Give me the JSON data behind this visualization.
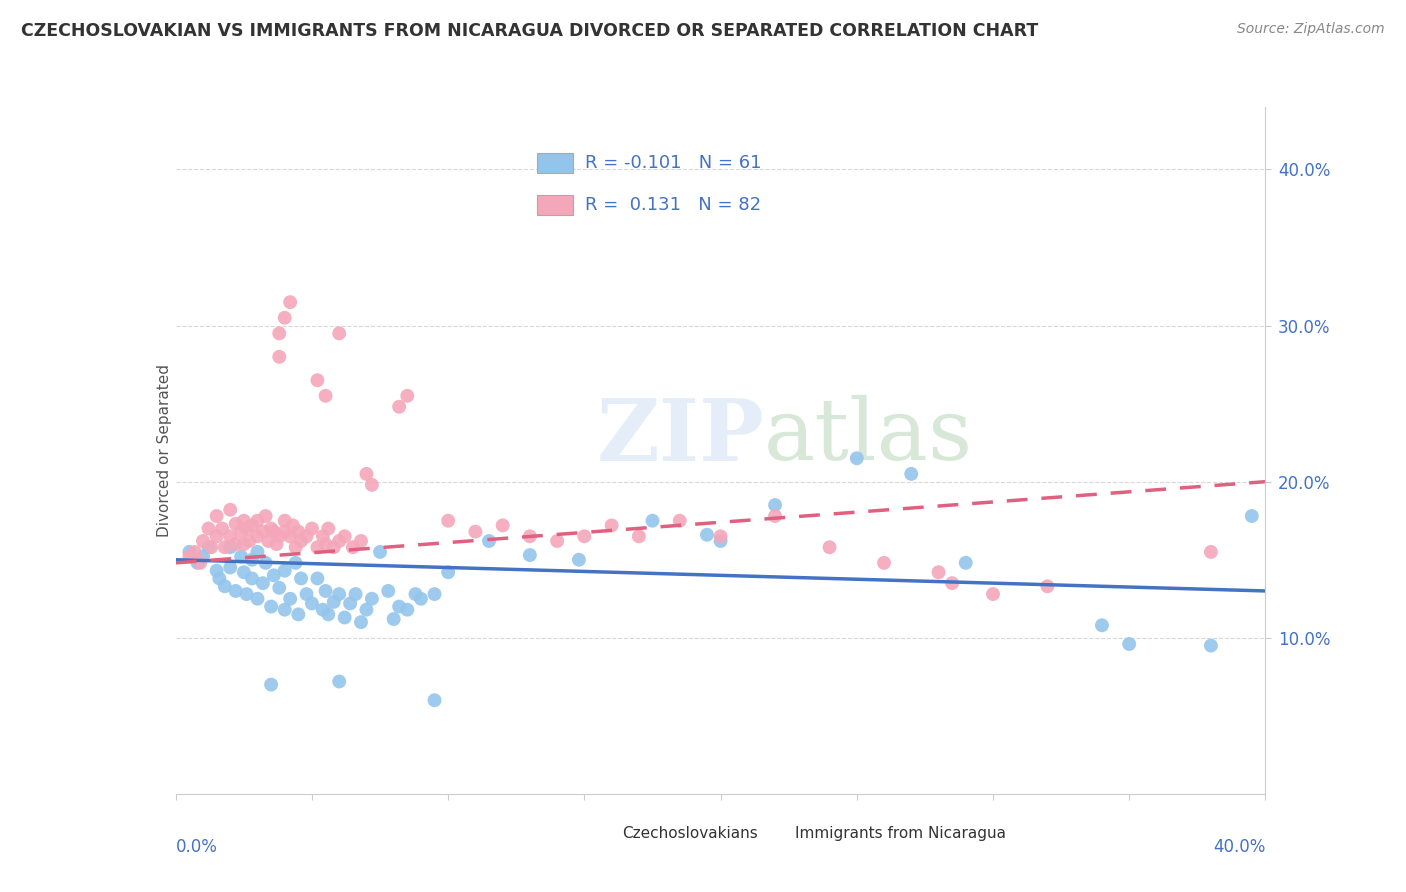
{
  "title": "CZECHOSLOVAKIAN VS IMMIGRANTS FROM NICARAGUA DIVORCED OR SEPARATED CORRELATION CHART",
  "source": "Source: ZipAtlas.com",
  "watermark": "ZIPatlas",
  "ylabel": "Divorced or Separated",
  "ytick_values": [
    0.1,
    0.2,
    0.3,
    0.4
  ],
  "xlim": [
    0.0,
    0.4
  ],
  "ylim": [
    0.0,
    0.44
  ],
  "blue_color": "#93C5EC",
  "pink_color": "#F4A7B9",
  "blue_line_color": "#4472C4",
  "pink_line_color": "#E06080",
  "tick_color": "#4472C4",
  "grid_color": "#D8D8D8",
  "bg_color": "#FFFFFF",
  "blue_scatter": [
    [
      0.005,
      0.155
    ],
    [
      0.008,
      0.148
    ],
    [
      0.01,
      0.152
    ],
    [
      0.012,
      0.158
    ],
    [
      0.015,
      0.143
    ],
    [
      0.016,
      0.138
    ],
    [
      0.018,
      0.133
    ],
    [
      0.02,
      0.145
    ],
    [
      0.02,
      0.158
    ],
    [
      0.022,
      0.13
    ],
    [
      0.024,
      0.152
    ],
    [
      0.025,
      0.142
    ],
    [
      0.026,
      0.128
    ],
    [
      0.028,
      0.138
    ],
    [
      0.028,
      0.15
    ],
    [
      0.03,
      0.125
    ],
    [
      0.03,
      0.155
    ],
    [
      0.032,
      0.135
    ],
    [
      0.033,
      0.148
    ],
    [
      0.035,
      0.12
    ],
    [
      0.036,
      0.14
    ],
    [
      0.038,
      0.132
    ],
    [
      0.04,
      0.118
    ],
    [
      0.04,
      0.143
    ],
    [
      0.042,
      0.125
    ],
    [
      0.044,
      0.148
    ],
    [
      0.045,
      0.115
    ],
    [
      0.046,
      0.138
    ],
    [
      0.048,
      0.128
    ],
    [
      0.05,
      0.122
    ],
    [
      0.052,
      0.138
    ],
    [
      0.054,
      0.118
    ],
    [
      0.055,
      0.13
    ],
    [
      0.056,
      0.115
    ],
    [
      0.058,
      0.123
    ],
    [
      0.06,
      0.128
    ],
    [
      0.062,
      0.113
    ],
    [
      0.064,
      0.122
    ],
    [
      0.066,
      0.128
    ],
    [
      0.068,
      0.11
    ],
    [
      0.07,
      0.118
    ],
    [
      0.072,
      0.125
    ],
    [
      0.075,
      0.155
    ],
    [
      0.078,
      0.13
    ],
    [
      0.08,
      0.112
    ],
    [
      0.082,
      0.12
    ],
    [
      0.085,
      0.118
    ],
    [
      0.088,
      0.128
    ],
    [
      0.09,
      0.125
    ],
    [
      0.095,
      0.128
    ],
    [
      0.1,
      0.142
    ],
    [
      0.115,
      0.162
    ],
    [
      0.13,
      0.153
    ],
    [
      0.148,
      0.15
    ],
    [
      0.175,
      0.175
    ],
    [
      0.2,
      0.162
    ],
    [
      0.25,
      0.215
    ],
    [
      0.27,
      0.205
    ],
    [
      0.035,
      0.07
    ],
    [
      0.06,
      0.072
    ],
    [
      0.095,
      0.06
    ],
    [
      0.35,
      0.096
    ],
    [
      0.38,
      0.095
    ],
    [
      0.395,
      0.178
    ],
    [
      0.195,
      0.166
    ],
    [
      0.22,
      0.185
    ],
    [
      0.29,
      0.148
    ],
    [
      0.34,
      0.108
    ]
  ],
  "pink_scatter": [
    [
      0.005,
      0.152
    ],
    [
      0.007,
      0.155
    ],
    [
      0.009,
      0.148
    ],
    [
      0.01,
      0.162
    ],
    [
      0.012,
      0.17
    ],
    [
      0.013,
      0.158
    ],
    [
      0.015,
      0.165
    ],
    [
      0.015,
      0.178
    ],
    [
      0.017,
      0.17
    ],
    [
      0.018,
      0.158
    ],
    [
      0.02,
      0.182
    ],
    [
      0.02,
      0.165
    ],
    [
      0.022,
      0.16
    ],
    [
      0.022,
      0.173
    ],
    [
      0.024,
      0.168
    ],
    [
      0.025,
      0.175
    ],
    [
      0.025,
      0.16
    ],
    [
      0.026,
      0.17
    ],
    [
      0.027,
      0.162
    ],
    [
      0.028,
      0.172
    ],
    [
      0.03,
      0.165
    ],
    [
      0.03,
      0.175
    ],
    [
      0.032,
      0.168
    ],
    [
      0.033,
      0.178
    ],
    [
      0.034,
      0.162
    ],
    [
      0.035,
      0.17
    ],
    [
      0.036,
      0.168
    ],
    [
      0.037,
      0.16
    ],
    [
      0.038,
      0.165
    ],
    [
      0.04,
      0.168
    ],
    [
      0.04,
      0.175
    ],
    [
      0.042,
      0.165
    ],
    [
      0.043,
      0.172
    ],
    [
      0.044,
      0.158
    ],
    [
      0.045,
      0.168
    ],
    [
      0.046,
      0.162
    ],
    [
      0.048,
      0.165
    ],
    [
      0.05,
      0.17
    ],
    [
      0.052,
      0.158
    ],
    [
      0.054,
      0.165
    ],
    [
      0.055,
      0.16
    ],
    [
      0.056,
      0.17
    ],
    [
      0.058,
      0.158
    ],
    [
      0.06,
      0.162
    ],
    [
      0.062,
      0.165
    ],
    [
      0.065,
      0.158
    ],
    [
      0.068,
      0.162
    ],
    [
      0.038,
      0.295
    ],
    [
      0.04,
      0.305
    ],
    [
      0.042,
      0.315
    ],
    [
      0.038,
      0.28
    ],
    [
      0.052,
      0.265
    ],
    [
      0.055,
      0.255
    ],
    [
      0.06,
      0.295
    ],
    [
      0.082,
      0.248
    ],
    [
      0.085,
      0.255
    ],
    [
      0.07,
      0.205
    ],
    [
      0.072,
      0.198
    ],
    [
      0.1,
      0.175
    ],
    [
      0.11,
      0.168
    ],
    [
      0.12,
      0.172
    ],
    [
      0.13,
      0.165
    ],
    [
      0.14,
      0.162
    ],
    [
      0.15,
      0.165
    ],
    [
      0.16,
      0.172
    ],
    [
      0.17,
      0.165
    ],
    [
      0.185,
      0.175
    ],
    [
      0.2,
      0.165
    ],
    [
      0.22,
      0.178
    ],
    [
      0.24,
      0.158
    ],
    [
      0.26,
      0.148
    ],
    [
      0.28,
      0.142
    ],
    [
      0.285,
      0.135
    ],
    [
      0.3,
      0.128
    ],
    [
      0.32,
      0.133
    ],
    [
      0.38,
      0.155
    ]
  ],
  "blue_trend_x": [
    0.0,
    0.4
  ],
  "blue_trend_y": [
    0.15,
    0.13
  ],
  "pink_trend_x": [
    0.0,
    0.4
  ],
  "pink_trend_y": [
    0.148,
    0.2
  ],
  "pink_trend_dash": true,
  "legend_box": {
    "r1_text": "R = -0.101   N = 61",
    "r2_text": "R =  0.131   N = 82"
  }
}
